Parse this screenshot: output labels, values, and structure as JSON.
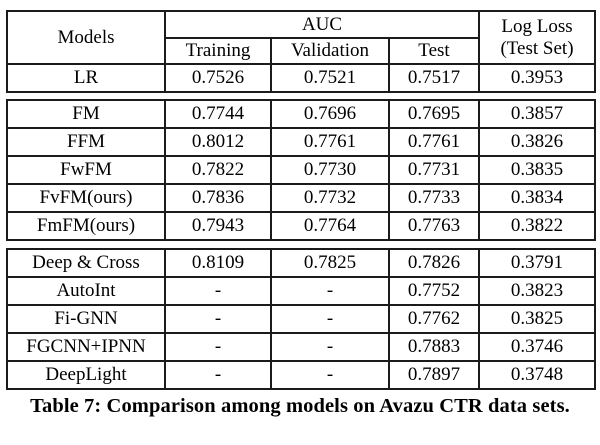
{
  "table": {
    "header": {
      "models": "Models",
      "auc": "AUC",
      "auc_sub": [
        "Training",
        "Validation",
        "Test"
      ],
      "logloss_line1": "Log Loss",
      "logloss_line2": "(Test Set)"
    },
    "groups": [
      {
        "rows": [
          {
            "model": "LR",
            "values": [
              "0.7526",
              "0.7521",
              "0.7517",
              "0.3953"
            ],
            "bold": [
              false,
              false,
              false,
              false
            ]
          }
        ]
      },
      {
        "rows": [
          {
            "model": "FM",
            "values": [
              "0.7744",
              "0.7696",
              "0.7695",
              "0.3857"
            ],
            "bold": [
              false,
              false,
              false,
              false
            ]
          },
          {
            "model": "FFM",
            "values": [
              "0.8012",
              "0.7761",
              "0.7761",
              "0.3826"
            ],
            "bold": [
              true,
              false,
              false,
              false
            ]
          },
          {
            "model": "FwFM",
            "values": [
              "0.7822",
              "0.7730",
              "0.7731",
              "0.3835"
            ],
            "bold": [
              false,
              false,
              false,
              false
            ]
          },
          {
            "model": "FvFM(ours)",
            "values": [
              "0.7836",
              "0.7732",
              "0.7733",
              "0.3834"
            ],
            "bold": [
              false,
              false,
              false,
              false
            ]
          },
          {
            "model": "FmFM(ours)",
            "values": [
              "0.7943",
              "0.7764",
              "0.7763",
              "0.3822"
            ],
            "bold": [
              false,
              true,
              true,
              true
            ]
          }
        ]
      },
      {
        "rows": [
          {
            "model": "Deep & Cross",
            "values": [
              "0.8109",
              "0.7825",
              "0.7826",
              "0.3791"
            ],
            "bold": [
              false,
              false,
              false,
              false
            ]
          },
          {
            "model": "AutoInt",
            "values": [
              "-",
              "-",
              "0.7752",
              "0.3823"
            ],
            "bold": [
              false,
              false,
              false,
              false
            ]
          },
          {
            "model": "Fi-GNN",
            "values": [
              "-",
              "-",
              "0.7762",
              "0.3825"
            ],
            "bold": [
              false,
              false,
              false,
              false
            ]
          },
          {
            "model": "FGCNN+IPNN",
            "values": [
              "-",
              "-",
              "0.7883",
              "0.3746"
            ],
            "bold": [
              false,
              false,
              false,
              false
            ]
          },
          {
            "model": "DeepLight",
            "values": [
              "-",
              "-",
              "0.7897",
              "0.3748"
            ],
            "bold": [
              false,
              false,
              true,
              true
            ]
          }
        ]
      }
    ],
    "caption": "Table 7: Comparison among models on Avazu CTR data sets."
  }
}
